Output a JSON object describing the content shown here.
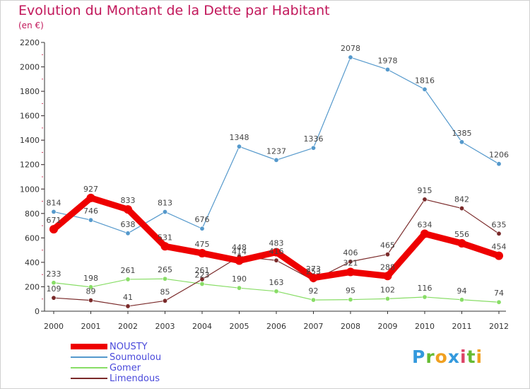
{
  "header": {
    "title": "Evolution du Montant de la Dette par Habitant",
    "subtitle": "(en €)"
  },
  "chart_data": {
    "type": "line",
    "x": [
      "2000",
      "2001",
      "2002",
      "2003",
      "2004",
      "2005",
      "2006",
      "2007",
      "2008",
      "2009",
      "2010",
      "2011",
      "2012"
    ],
    "ylim": [
      0,
      2200
    ],
    "yticks": [
      0,
      200,
      400,
      600,
      800,
      1000,
      1200,
      1400,
      1600,
      1800,
      2000,
      2200
    ],
    "grid": false,
    "legend_position": "bottom-left",
    "series": [
      {
        "name": "NOUSTY",
        "color": "#ee0000",
        "values": [
          671,
          927,
          833,
          531,
          475,
          414,
          483,
          273,
          321,
          288,
          634,
          556,
          454
        ]
      },
      {
        "name": "Soumoulou",
        "color": "#5599cc",
        "values": [
          814,
          746,
          638,
          813,
          676,
          1348,
          1237,
          1336,
          2078,
          1978,
          1816,
          1385,
          1206
        ]
      },
      {
        "name": "Gomer",
        "color": "#88dd66",
        "values": [
          233,
          198,
          261,
          265,
          223,
          190,
          163,
          92,
          95,
          102,
          116,
          94,
          74
        ]
      },
      {
        "name": "Limendous",
        "color": "#7a2a2a",
        "values": [
          109,
          89,
          41,
          85,
          261,
          448,
          416,
          253,
          406,
          465,
          915,
          842,
          635
        ]
      }
    ]
  },
  "logo": {
    "letters": [
      "P",
      "r",
      "o",
      "x",
      "i",
      "t",
      "i"
    ],
    "colors": [
      "#3399dd",
      "#66bb33",
      "#f0a020",
      "#3399dd",
      "#dd4466",
      "#66bb33",
      "#f0a020"
    ]
  }
}
